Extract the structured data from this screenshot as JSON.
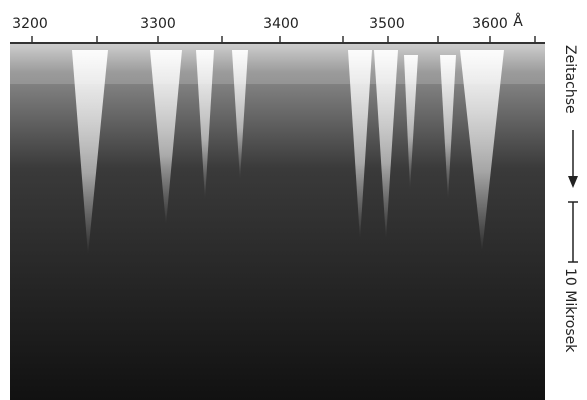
{
  "axis": {
    "labels": [
      "3200",
      "3300",
      "3400",
      "3500",
      "3600"
    ],
    "unit": "Å"
  },
  "side": {
    "time_axis": "Zeitachse",
    "scale": "10 Mikrosek"
  }
}
